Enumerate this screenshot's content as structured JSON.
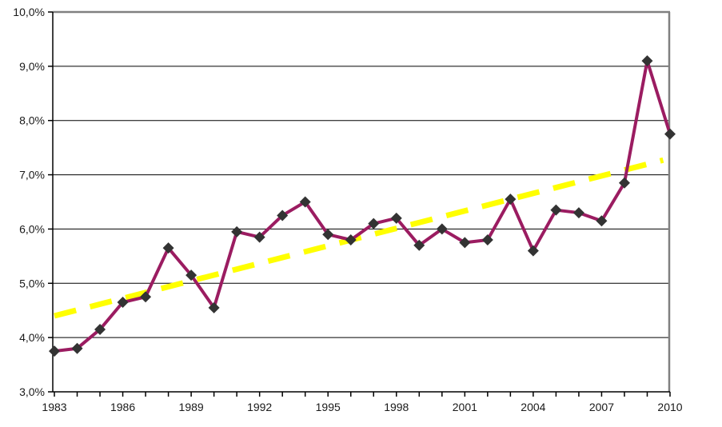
{
  "chart_data": {
    "type": "line",
    "title": "",
    "xlabel": "",
    "ylabel": "",
    "x": [
      1983,
      1984,
      1985,
      1986,
      1987,
      1988,
      1989,
      1990,
      1991,
      1992,
      1993,
      1994,
      1995,
      1996,
      1997,
      1998,
      1999,
      2000,
      2001,
      2002,
      2003,
      2004,
      2005,
      2006,
      2007,
      2008,
      2009,
      2010
    ],
    "series": [
      {
        "name": "annual-rate",
        "type": "line-with-markers",
        "color": "#9B1C61",
        "marker": "diamond",
        "marker_color": "#333333",
        "values": [
          3.75,
          3.8,
          4.15,
          4.65,
          4.75,
          5.65,
          5.15,
          4.55,
          5.95,
          5.85,
          6.25,
          6.5,
          5.9,
          5.8,
          6.1,
          6.2,
          5.7,
          6.0,
          5.75,
          5.8,
          6.55,
          5.6,
          6.35,
          6.3,
          6.15,
          6.85,
          9.1,
          7.75
        ]
      },
      {
        "name": "linear-trend",
        "type": "dashed-trend",
        "color": "#FFFF00",
        "start": {
          "x": 1983,
          "y": 4.4
        },
        "end": {
          "x": 2009.7,
          "y": 7.27
        }
      }
    ],
    "ylim": [
      3,
      10
    ],
    "ytick_step": 1,
    "ytick_values": [
      3,
      4,
      5,
      6,
      7,
      8,
      9,
      10
    ],
    "ytick_labels": [
      "3,0%",
      "4,0%",
      "5,0%",
      "6,0%",
      "7,0%",
      "8,0%",
      "9,0%",
      "10,0%"
    ],
    "xtick_every_year": true,
    "xtick_label_years": [
      1983,
      1986,
      1989,
      1992,
      1995,
      1998,
      2001,
      2004,
      2007,
      2010
    ],
    "grid": "horizontal",
    "legend": "none",
    "colors": {
      "gridline": "#000000",
      "axis": "#000000",
      "plot_border": "#808080",
      "background": "#FFFFFF"
    }
  }
}
